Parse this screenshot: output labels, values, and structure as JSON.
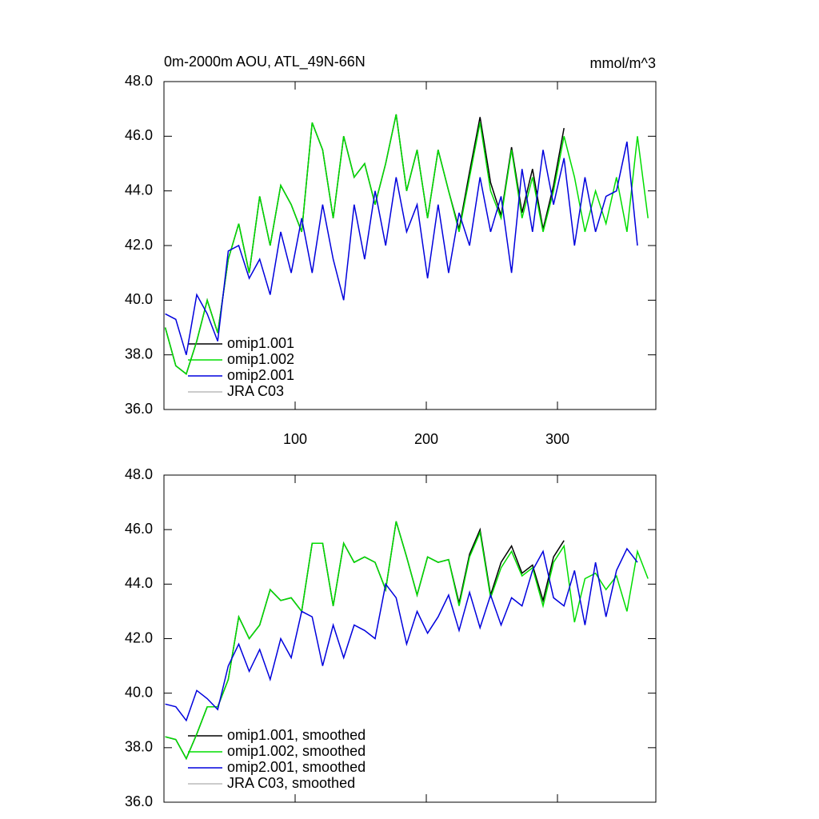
{
  "chart_data": [
    {
      "type": "line",
      "title": "0m-2000m AOU, ATL_49N-66N",
      "units": "mmol/m^3",
      "x": [
        1,
        9,
        17,
        25,
        33,
        41,
        49,
        57,
        65,
        73,
        81,
        89,
        97,
        105,
        113,
        121,
        129,
        137,
        145,
        153,
        161,
        169,
        177,
        185,
        193,
        201,
        209,
        217,
        225,
        233,
        241,
        249,
        257,
        265,
        273,
        281,
        289,
        297,
        305,
        313,
        321,
        329,
        337,
        345,
        353,
        361,
        369
      ],
      "xlim": [
        0,
        375
      ],
      "xticks": [
        100,
        200,
        300
      ],
      "ylim": [
        36,
        48
      ],
      "yticks": [
        {
          "value": 36,
          "label": "36.0"
        },
        {
          "value": 38,
          "label": "38.0"
        },
        {
          "value": 40,
          "label": "40.0"
        },
        {
          "value": 42,
          "label": "42.0"
        },
        {
          "value": 44,
          "label": "44.0"
        },
        {
          "value": 46,
          "label": "46.0"
        },
        {
          "value": 48,
          "label": "48.0"
        }
      ],
      "series": [
        {
          "name": "omip1.001",
          "color": "#000000",
          "values": [
            39.0,
            37.6,
            37.3,
            38.5,
            40.0,
            38.8,
            41.5,
            42.8,
            41.0,
            43.8,
            42.0,
            44.2,
            43.5,
            42.5,
            46.5,
            45.5,
            43.0,
            46.0,
            44.5,
            45.0,
            43.5,
            45.0,
            46.8,
            44.0,
            45.5,
            43.0,
            45.5,
            44.0,
            42.6,
            44.7,
            46.7,
            44.3,
            43.1,
            45.6,
            43.2,
            44.8,
            42.6,
            44.2,
            46.3,
            null,
            null,
            null,
            null,
            null,
            null,
            null,
            null
          ]
        },
        {
          "name": "omip1.002",
          "color": "#00dd00",
          "values": [
            39.0,
            37.6,
            37.3,
            38.5,
            40.0,
            38.8,
            41.5,
            42.8,
            41.0,
            43.8,
            42.0,
            44.2,
            43.5,
            42.5,
            46.5,
            45.5,
            43.0,
            46.0,
            44.5,
            45.0,
            43.5,
            45.0,
            46.8,
            44.0,
            45.5,
            43.0,
            45.5,
            44.0,
            42.5,
            44.5,
            46.5,
            44.0,
            43.0,
            45.5,
            43.0,
            44.5,
            42.5,
            44.0,
            46.0,
            44.5,
            42.5,
            44.0,
            42.8,
            44.5,
            42.5,
            46.0,
            43.0
          ]
        },
        {
          "name": "omip2.001",
          "color": "#0000dd",
          "values": [
            39.5,
            39.3,
            38.0,
            40.2,
            39.5,
            38.5,
            41.8,
            42.0,
            40.8,
            41.5,
            40.2,
            42.5,
            41.0,
            43.0,
            41.0,
            43.5,
            41.5,
            40.0,
            43.5,
            41.5,
            44.0,
            42.0,
            44.5,
            42.5,
            43.5,
            40.8,
            43.5,
            41.0,
            43.2,
            42.0,
            44.5,
            42.5,
            43.8,
            41.0,
            44.8,
            42.5,
            45.5,
            43.5,
            45.2,
            42.0,
            44.5,
            42.5,
            43.8,
            44.0,
            45.8,
            42.0,
            null
          ]
        },
        {
          "name": "JRA C03",
          "color": "#bbbbbb",
          "values": [
            null,
            null,
            null,
            null,
            null,
            null,
            null,
            null,
            null,
            null,
            null,
            null,
            null,
            null,
            null,
            null,
            null,
            null,
            null,
            null,
            null,
            null,
            null,
            null,
            null,
            null,
            null,
            null,
            null,
            null,
            null,
            null,
            null,
            null,
            null,
            null,
            null,
            null,
            null,
            null,
            null,
            null,
            null,
            null,
            null,
            null,
            null
          ]
        }
      ]
    },
    {
      "type": "line",
      "x": [
        1,
        9,
        17,
        25,
        33,
        41,
        49,
        57,
        65,
        73,
        81,
        89,
        97,
        105,
        113,
        121,
        129,
        137,
        145,
        153,
        161,
        169,
        177,
        185,
        193,
        201,
        209,
        217,
        225,
        233,
        241,
        249,
        257,
        265,
        273,
        281,
        289,
        297,
        305,
        313,
        321,
        329,
        337,
        345,
        353,
        361,
        369
      ],
      "xlim": [
        0,
        375
      ],
      "xticks": [
        100,
        200,
        300
      ],
      "ylim": [
        36,
        48
      ],
      "yticks": [
        {
          "value": 36,
          "label": "36.0"
        },
        {
          "value": 38,
          "label": "38.0"
        },
        {
          "value": 40,
          "label": "40.0"
        },
        {
          "value": 42,
          "label": "42.0"
        },
        {
          "value": 44,
          "label": "44.0"
        },
        {
          "value": 46,
          "label": "46.0"
        },
        {
          "value": 48,
          "label": "48.0"
        }
      ],
      "series": [
        {
          "name": "omip1.001, smoothed",
          "color": "#000000",
          "values": [
            38.4,
            38.3,
            37.6,
            38.5,
            39.5,
            39.5,
            40.5,
            42.8,
            42.0,
            42.5,
            43.8,
            43.4,
            43.5,
            43.0,
            45.5,
            45.5,
            43.2,
            45.5,
            44.8,
            45.0,
            44.8,
            43.8,
            46.3,
            45.0,
            43.6,
            45.0,
            44.8,
            44.9,
            43.3,
            45.1,
            46.0,
            43.6,
            44.8,
            45.4,
            44.4,
            44.7,
            43.4,
            45.0,
            45.6,
            null,
            null,
            null,
            null,
            null,
            null,
            null,
            null
          ]
        },
        {
          "name": "omip1.002, smoothed",
          "color": "#00dd00",
          "values": [
            38.4,
            38.3,
            37.6,
            38.5,
            39.5,
            39.5,
            40.5,
            42.8,
            42.0,
            42.5,
            43.8,
            43.4,
            43.5,
            43.0,
            45.5,
            45.5,
            43.2,
            45.5,
            44.8,
            45.0,
            44.8,
            43.8,
            46.3,
            45.0,
            43.6,
            45.0,
            44.8,
            44.9,
            43.2,
            45.0,
            45.9,
            43.5,
            44.6,
            45.2,
            44.3,
            44.6,
            43.2,
            44.8,
            45.4,
            42.6,
            44.2,
            44.4,
            43.8,
            44.3,
            43.0,
            45.2,
            44.2
          ]
        },
        {
          "name": "omip2.001, smoothed",
          "color": "#0000dd",
          "values": [
            39.6,
            39.5,
            39.0,
            40.1,
            39.8,
            39.4,
            41.0,
            41.8,
            40.8,
            41.6,
            40.5,
            42.0,
            41.3,
            43.0,
            42.8,
            41.0,
            42.5,
            41.3,
            42.5,
            42.3,
            42.0,
            44.0,
            43.5,
            41.8,
            43.0,
            42.2,
            42.8,
            43.6,
            42.3,
            43.7,
            42.4,
            43.6,
            42.5,
            43.5,
            43.2,
            44.5,
            45.2,
            43.5,
            43.2,
            44.5,
            42.5,
            44.8,
            42.8,
            44.5,
            45.3,
            44.8,
            null
          ]
        },
        {
          "name": "JRA C03, smoothed",
          "color": "#bbbbbb",
          "values": [
            null,
            null,
            null,
            null,
            null,
            null,
            null,
            null,
            null,
            null,
            null,
            null,
            null,
            null,
            null,
            null,
            null,
            null,
            null,
            null,
            null,
            null,
            null,
            null,
            null,
            null,
            null,
            null,
            null,
            null,
            null,
            null,
            null,
            null,
            null,
            null,
            null,
            null,
            null,
            null,
            null,
            null,
            null,
            null,
            null,
            null,
            null
          ]
        }
      ]
    }
  ]
}
